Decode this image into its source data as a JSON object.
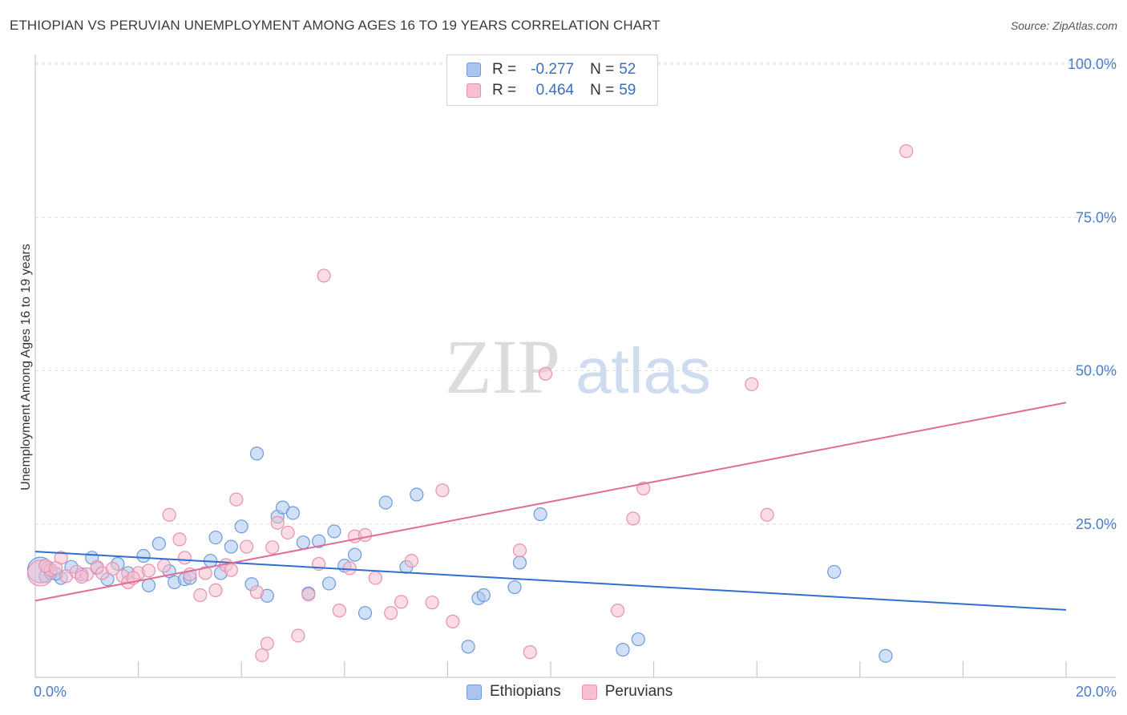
{
  "title": "ETHIOPIAN VS PERUVIAN UNEMPLOYMENT AMONG AGES 16 TO 19 YEARS CORRELATION CHART",
  "source": "Source: ZipAtlas.com",
  "watermark": {
    "zip": "ZIP",
    "atlas": "atlas"
  },
  "legend": {
    "ethiopians": {
      "r_label": "R =",
      "r_value": "-0.277",
      "n_label": "N =",
      "n_value": "52"
    },
    "peruvians": {
      "r_label": "R =",
      "r_value": "0.464",
      "n_label": "N =",
      "n_value": "59"
    }
  },
  "bottom_legend": {
    "ethiopians": "Ethiopians",
    "peruvians": "Peruvians"
  },
  "colors": {
    "ethiopians_fill": "#a9c6ef",
    "ethiopians_stroke": "#6f9ad8",
    "ethiopians_line": "#2f6fd0",
    "peruvians_fill": "#f6bfd0",
    "peruvians_stroke": "#e890ae",
    "peruvians_line": "#e06c98",
    "tick": "#4a7cc7",
    "grid": "#dcdcdc"
  },
  "chart_data": {
    "type": "scatter",
    "title": "ETHIOPIAN VS PERUVIAN UNEMPLOYMENT AMONG AGES 16 TO 19 YEARS CORRELATION CHART",
    "xlabel": "",
    "ylabel": "Unemployment Among Ages 16 to 19 years",
    "xlim": [
      0,
      20
    ],
    "ylim": [
      0,
      100
    ],
    "x_tick_labels": [
      {
        "value": 0,
        "label": "0.0%"
      },
      {
        "value": 20,
        "label": "20.0%"
      }
    ],
    "y_tick_labels": [
      {
        "value": 25,
        "label": "25.0%"
      },
      {
        "value": 50,
        "label": "50.0%"
      },
      {
        "value": 75,
        "label": "75.0%"
      },
      {
        "value": 100,
        "label": "100.0%"
      }
    ],
    "series": [
      {
        "name": "Ethiopians",
        "trend": {
          "x": [
            0,
            20
          ],
          "y": [
            20.5,
            11.0
          ]
        },
        "points": [
          {
            "x": 0.1,
            "y": 17.5,
            "big": true
          },
          {
            "x": 0.2,
            "y": 16.5
          },
          {
            "x": 0.3,
            "y": 17.0
          },
          {
            "x": 0.5,
            "y": 16.2
          },
          {
            "x": 0.7,
            "y": 18.0
          },
          {
            "x": 0.9,
            "y": 16.8
          },
          {
            "x": 1.1,
            "y": 19.5
          },
          {
            "x": 1.2,
            "y": 17.8
          },
          {
            "x": 1.4,
            "y": 16.0
          },
          {
            "x": 1.6,
            "y": 18.5
          },
          {
            "x": 1.8,
            "y": 17.0
          },
          {
            "x": 2.1,
            "y": 19.8
          },
          {
            "x": 2.2,
            "y": 15.0
          },
          {
            "x": 2.4,
            "y": 21.8
          },
          {
            "x": 2.6,
            "y": 17.3
          },
          {
            "x": 2.7,
            "y": 15.5
          },
          {
            "x": 2.9,
            "y": 16.0
          },
          {
            "x": 3.0,
            "y": 16.2
          },
          {
            "x": 3.4,
            "y": 19.0
          },
          {
            "x": 3.5,
            "y": 22.8
          },
          {
            "x": 3.6,
            "y": 17.0
          },
          {
            "x": 3.8,
            "y": 21.3
          },
          {
            "x": 4.0,
            "y": 24.6
          },
          {
            "x": 4.2,
            "y": 15.2
          },
          {
            "x": 4.3,
            "y": 36.5
          },
          {
            "x": 4.5,
            "y": 13.3
          },
          {
            "x": 4.7,
            "y": 26.2
          },
          {
            "x": 4.8,
            "y": 27.7
          },
          {
            "x": 5.0,
            "y": 26.8
          },
          {
            "x": 5.2,
            "y": 22.0
          },
          {
            "x": 5.3,
            "y": 13.7
          },
          {
            "x": 5.5,
            "y": 22.2
          },
          {
            "x": 5.7,
            "y": 15.3
          },
          {
            "x": 5.8,
            "y": 23.8
          },
          {
            "x": 6.0,
            "y": 18.2
          },
          {
            "x": 6.2,
            "y": 20.0
          },
          {
            "x": 6.4,
            "y": 10.5
          },
          {
            "x": 6.8,
            "y": 28.5
          },
          {
            "x": 7.2,
            "y": 18.0
          },
          {
            "x": 7.4,
            "y": 29.8
          },
          {
            "x": 8.4,
            "y": 5.0
          },
          {
            "x": 8.6,
            "y": 12.9
          },
          {
            "x": 8.7,
            "y": 13.4
          },
          {
            "x": 9.3,
            "y": 14.7
          },
          {
            "x": 9.4,
            "y": 18.7
          },
          {
            "x": 9.8,
            "y": 26.6
          },
          {
            "x": 11.4,
            "y": 4.5
          },
          {
            "x": 11.7,
            "y": 6.2
          },
          {
            "x": 15.5,
            "y": 17.2
          },
          {
            "x": 16.5,
            "y": 3.5
          },
          {
            "x": 0.4,
            "y": 16.9
          },
          {
            "x": 0.25,
            "y": 17.9
          }
        ]
      },
      {
        "name": "Peruvians",
        "trend": {
          "x": [
            0,
            20
          ],
          "y": [
            12.5,
            44.8
          ]
        },
        "points": [
          {
            "x": 0.1,
            "y": 17.0,
            "big": true
          },
          {
            "x": 0.3,
            "y": 17.5
          },
          {
            "x": 0.5,
            "y": 19.5
          },
          {
            "x": 0.6,
            "y": 16.5
          },
          {
            "x": 0.8,
            "y": 17.2
          },
          {
            "x": 1.0,
            "y": 16.8
          },
          {
            "x": 1.2,
            "y": 18.0
          },
          {
            "x": 1.3,
            "y": 17.0
          },
          {
            "x": 1.5,
            "y": 17.7
          },
          {
            "x": 1.7,
            "y": 16.5
          },
          {
            "x": 1.8,
            "y": 15.5
          },
          {
            "x": 2.0,
            "y": 17.0
          },
          {
            "x": 2.2,
            "y": 17.4
          },
          {
            "x": 2.5,
            "y": 18.2
          },
          {
            "x": 2.6,
            "y": 26.5
          },
          {
            "x": 2.8,
            "y": 22.5
          },
          {
            "x": 2.9,
            "y": 19.5
          },
          {
            "x": 3.0,
            "y": 16.8
          },
          {
            "x": 3.2,
            "y": 13.4
          },
          {
            "x": 3.3,
            "y": 17.0
          },
          {
            "x": 3.5,
            "y": 14.2
          },
          {
            "x": 3.7,
            "y": 18.3
          },
          {
            "x": 3.8,
            "y": 17.5
          },
          {
            "x": 3.9,
            "y": 29.0
          },
          {
            "x": 4.1,
            "y": 21.3
          },
          {
            "x": 4.3,
            "y": 13.9
          },
          {
            "x": 4.4,
            "y": 3.6
          },
          {
            "x": 4.5,
            "y": 5.5
          },
          {
            "x": 4.6,
            "y": 21.2
          },
          {
            "x": 4.7,
            "y": 25.2
          },
          {
            "x": 4.9,
            "y": 23.6
          },
          {
            "x": 5.1,
            "y": 6.8
          },
          {
            "x": 5.3,
            "y": 13.5
          },
          {
            "x": 5.5,
            "y": 18.5
          },
          {
            "x": 5.6,
            "y": 65.5
          },
          {
            "x": 5.9,
            "y": 10.9
          },
          {
            "x": 6.1,
            "y": 17.8
          },
          {
            "x": 6.2,
            "y": 23.0
          },
          {
            "x": 6.4,
            "y": 23.2
          },
          {
            "x": 6.6,
            "y": 16.2
          },
          {
            "x": 6.9,
            "y": 10.5
          },
          {
            "x": 7.1,
            "y": 12.3
          },
          {
            "x": 7.3,
            "y": 19.0
          },
          {
            "x": 7.7,
            "y": 12.2
          },
          {
            "x": 7.9,
            "y": 30.5
          },
          {
            "x": 8.1,
            "y": 9.1
          },
          {
            "x": 9.4,
            "y": 20.7
          },
          {
            "x": 9.6,
            "y": 4.1
          },
          {
            "x": 9.9,
            "y": 49.5
          },
          {
            "x": 11.3,
            "y": 10.9
          },
          {
            "x": 11.6,
            "y": 25.9
          },
          {
            "x": 11.8,
            "y": 30.8
          },
          {
            "x": 13.9,
            "y": 47.8
          },
          {
            "x": 14.2,
            "y": 26.5
          },
          {
            "x": 16.9,
            "y": 85.8
          },
          {
            "x": 0.9,
            "y": 16.4
          },
          {
            "x": 0.2,
            "y": 18.2
          },
          {
            "x": 1.9,
            "y": 16.2
          },
          {
            "x": 0.4,
            "y": 17.8
          }
        ]
      }
    ]
  }
}
